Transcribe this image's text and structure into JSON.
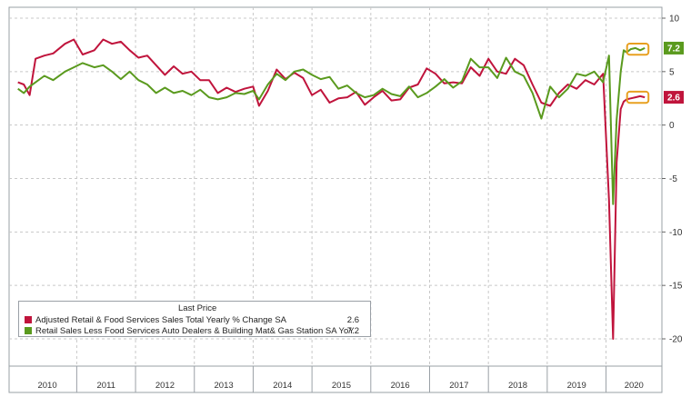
{
  "chart_data": {
    "type": "line",
    "title": "",
    "xlabel": "",
    "ylabel": "",
    "ylim": [
      -22,
      10
    ],
    "y_ticks": [
      10,
      5,
      0,
      -5,
      -10,
      -15,
      -20
    ],
    "x_ticks": [
      "2010",
      "2011",
      "2012",
      "2013",
      "2014",
      "2015",
      "2016",
      "2017",
      "2018",
      "2019",
      "2020"
    ],
    "grid": "dashed",
    "legend_placement": "bottom-left",
    "legend_header": "Last Price",
    "series": [
      {
        "name": "Adjusted Retail & Food Services Sales Total Yearly % Change SA",
        "color": "#c0143c",
        "last_value_label": "2.6",
        "x": [
          2010.0,
          2010.1,
          2010.2,
          2010.3,
          2010.45,
          2010.6,
          2010.8,
          2010.95,
          2011.1,
          2011.3,
          2011.45,
          2011.6,
          2011.75,
          2011.9,
          2012.05,
          2012.2,
          2012.35,
          2012.5,
          2012.65,
          2012.8,
          2012.95,
          2013.1,
          2013.25,
          2013.4,
          2013.55,
          2013.7,
          2013.85,
          2014.0,
          2014.1,
          2014.25,
          2014.4,
          2014.55,
          2014.7,
          2014.85,
          2015.0,
          2015.15,
          2015.3,
          2015.45,
          2015.6,
          2015.75,
          2015.9,
          2016.05,
          2016.2,
          2016.35,
          2016.5,
          2016.65,
          2016.8,
          2016.95,
          2017.1,
          2017.25,
          2017.4,
          2017.55,
          2017.7,
          2017.85,
          2018.0,
          2018.15,
          2018.3,
          2018.45,
          2018.6,
          2018.75,
          2018.9,
          2019.05,
          2019.2,
          2019.35,
          2019.5,
          2019.65,
          2019.8,
          2019.95,
          2020.05,
          2020.12,
          2020.18,
          2020.25,
          2020.3,
          2020.35,
          2020.42,
          2020.5,
          2020.58,
          2020.66
        ],
        "values": [
          4.0,
          3.8,
          2.8,
          6.2,
          6.5,
          6.7,
          7.6,
          8.0,
          6.6,
          7.0,
          8.0,
          7.6,
          7.8,
          7.0,
          6.3,
          6.5,
          5.6,
          4.7,
          5.5,
          4.8,
          5.0,
          4.2,
          4.2,
          3.0,
          3.5,
          3.1,
          3.4,
          3.6,
          1.8,
          3.2,
          5.2,
          4.3,
          4.9,
          4.4,
          2.8,
          3.3,
          2.1,
          2.5,
          2.6,
          3.1,
          1.9,
          2.6,
          3.2,
          2.3,
          2.4,
          3.5,
          3.8,
          5.3,
          4.8,
          3.9,
          4.0,
          3.9,
          5.4,
          4.6,
          6.2,
          5.0,
          4.8,
          6.2,
          5.6,
          3.8,
          2.1,
          1.8,
          3.0,
          3.8,
          3.4,
          4.2,
          3.8,
          4.8,
          -7.0,
          -20.0,
          -3.5,
          1.5,
          2.2,
          2.4,
          2.5,
          2.6,
          2.7,
          2.6
        ]
      },
      {
        "name": "Retail Sales Less Food Services Auto Dealers & Building Mat& Gas Station SA YoY",
        "color": "#5a9a1e",
        "last_value_label": "7.2",
        "x": [
          2010.0,
          2010.1,
          2010.2,
          2010.3,
          2010.45,
          2010.6,
          2010.8,
          2010.95,
          2011.1,
          2011.3,
          2011.45,
          2011.6,
          2011.75,
          2011.9,
          2012.05,
          2012.2,
          2012.35,
          2012.5,
          2012.65,
          2012.8,
          2012.95,
          2013.1,
          2013.25,
          2013.4,
          2013.55,
          2013.7,
          2013.85,
          2014.0,
          2014.1,
          2014.25,
          2014.4,
          2014.55,
          2014.7,
          2014.85,
          2015.0,
          2015.15,
          2015.3,
          2015.45,
          2015.6,
          2015.75,
          2015.9,
          2016.05,
          2016.2,
          2016.35,
          2016.5,
          2016.65,
          2016.8,
          2016.95,
          2017.1,
          2017.25,
          2017.4,
          2017.55,
          2017.7,
          2017.85,
          2018.0,
          2018.15,
          2018.3,
          2018.45,
          2018.6,
          2018.75,
          2018.9,
          2019.05,
          2019.2,
          2019.35,
          2019.5,
          2019.65,
          2019.8,
          2019.95,
          2020.05,
          2020.12,
          2020.18,
          2020.25,
          2020.3,
          2020.35,
          2020.42,
          2020.5,
          2020.58,
          2020.66
        ],
        "values": [
          3.4,
          3.0,
          3.6,
          4.0,
          4.6,
          4.2,
          5.0,
          5.4,
          5.8,
          5.4,
          5.6,
          5.0,
          4.3,
          5.0,
          4.2,
          3.8,
          3.0,
          3.5,
          3.0,
          3.2,
          2.8,
          3.3,
          2.6,
          2.4,
          2.6,
          3.0,
          2.9,
          3.2,
          2.4,
          3.8,
          4.8,
          4.2,
          5.0,
          5.2,
          4.7,
          4.3,
          4.5,
          3.4,
          3.7,
          3.0,
          2.6,
          2.8,
          3.4,
          2.9,
          2.7,
          3.6,
          2.6,
          3.0,
          3.6,
          4.3,
          3.5,
          4.1,
          6.2,
          5.4,
          5.4,
          4.4,
          6.3,
          5.0,
          4.6,
          3.0,
          0.6,
          3.6,
          2.6,
          3.4,
          4.8,
          4.6,
          5.0,
          4.0,
          6.5,
          -7.4,
          0.5,
          5.0,
          7.0,
          6.8,
          7.1,
          7.2,
          7.0,
          7.2
        ]
      }
    ]
  }
}
